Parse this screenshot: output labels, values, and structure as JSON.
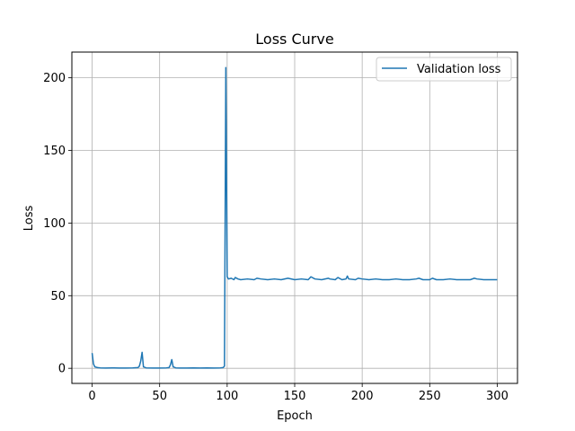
{
  "chart_data": {
    "type": "line",
    "title": "Loss Curve",
    "xlabel": "Epoch",
    "ylabel": "Loss",
    "xlim": [
      -15,
      315
    ],
    "ylim": [
      -10.4,
      217.7
    ],
    "xticks": [
      0,
      50,
      100,
      150,
      200,
      250,
      300
    ],
    "yticks": [
      0,
      50,
      100,
      150,
      200
    ],
    "grid": true,
    "legend_position": "top-right",
    "series": [
      {
        "name": "Validation loss",
        "color": "#1f77b4",
        "x": [
          0,
          1,
          2,
          4,
          6,
          10,
          15,
          20,
          25,
          30,
          34,
          35,
          36,
          37,
          38,
          40,
          45,
          50,
          55,
          57,
          58,
          59,
          60,
          62,
          65,
          70,
          75,
          80,
          85,
          90,
          95,
          97,
          98,
          99,
          100,
          101,
          103,
          105,
          106,
          108,
          110,
          115,
          120,
          122,
          125,
          130,
          135,
          140,
          145,
          150,
          155,
          160,
          162,
          165,
          170,
          175,
          176,
          180,
          182,
          185,
          188,
          189,
          190,
          195,
          197,
          200,
          205,
          210,
          215,
          220,
          225,
          230,
          235,
          240,
          242,
          245,
          250,
          252,
          255,
          260,
          265,
          270,
          275,
          280,
          283,
          285,
          290,
          295,
          300
        ],
        "y": [
          10.5,
          3.0,
          1.0,
          0.5,
          0.3,
          0.2,
          0.3,
          0.2,
          0.2,
          0.3,
          0.5,
          1.5,
          5.0,
          11.0,
          1.0,
          0.3,
          0.2,
          0.2,
          0.3,
          0.5,
          2.5,
          6.0,
          1.0,
          0.3,
          0.2,
          0.2,
          0.3,
          0.2,
          0.3,
          0.2,
          0.3,
          0.5,
          1.5,
          207.0,
          63.0,
          61.5,
          62.0,
          61.0,
          62.5,
          61.5,
          61.0,
          61.5,
          61.0,
          62.0,
          61.5,
          61.0,
          61.5,
          61.0,
          62.0,
          61.0,
          61.5,
          61.0,
          63.0,
          61.5,
          61.0,
          62.0,
          61.5,
          61.0,
          62.5,
          61.0,
          61.5,
          63.5,
          61.5,
          61.0,
          62.0,
          61.5,
          61.0,
          61.5,
          61.0,
          61.0,
          61.5,
          61.0,
          61.0,
          61.5,
          62.0,
          61.0,
          61.0,
          62.0,
          61.0,
          61.0,
          61.5,
          61.0,
          61.0,
          61.0,
          62.0,
          61.5,
          61.0,
          61.0,
          61.0
        ]
      }
    ]
  }
}
